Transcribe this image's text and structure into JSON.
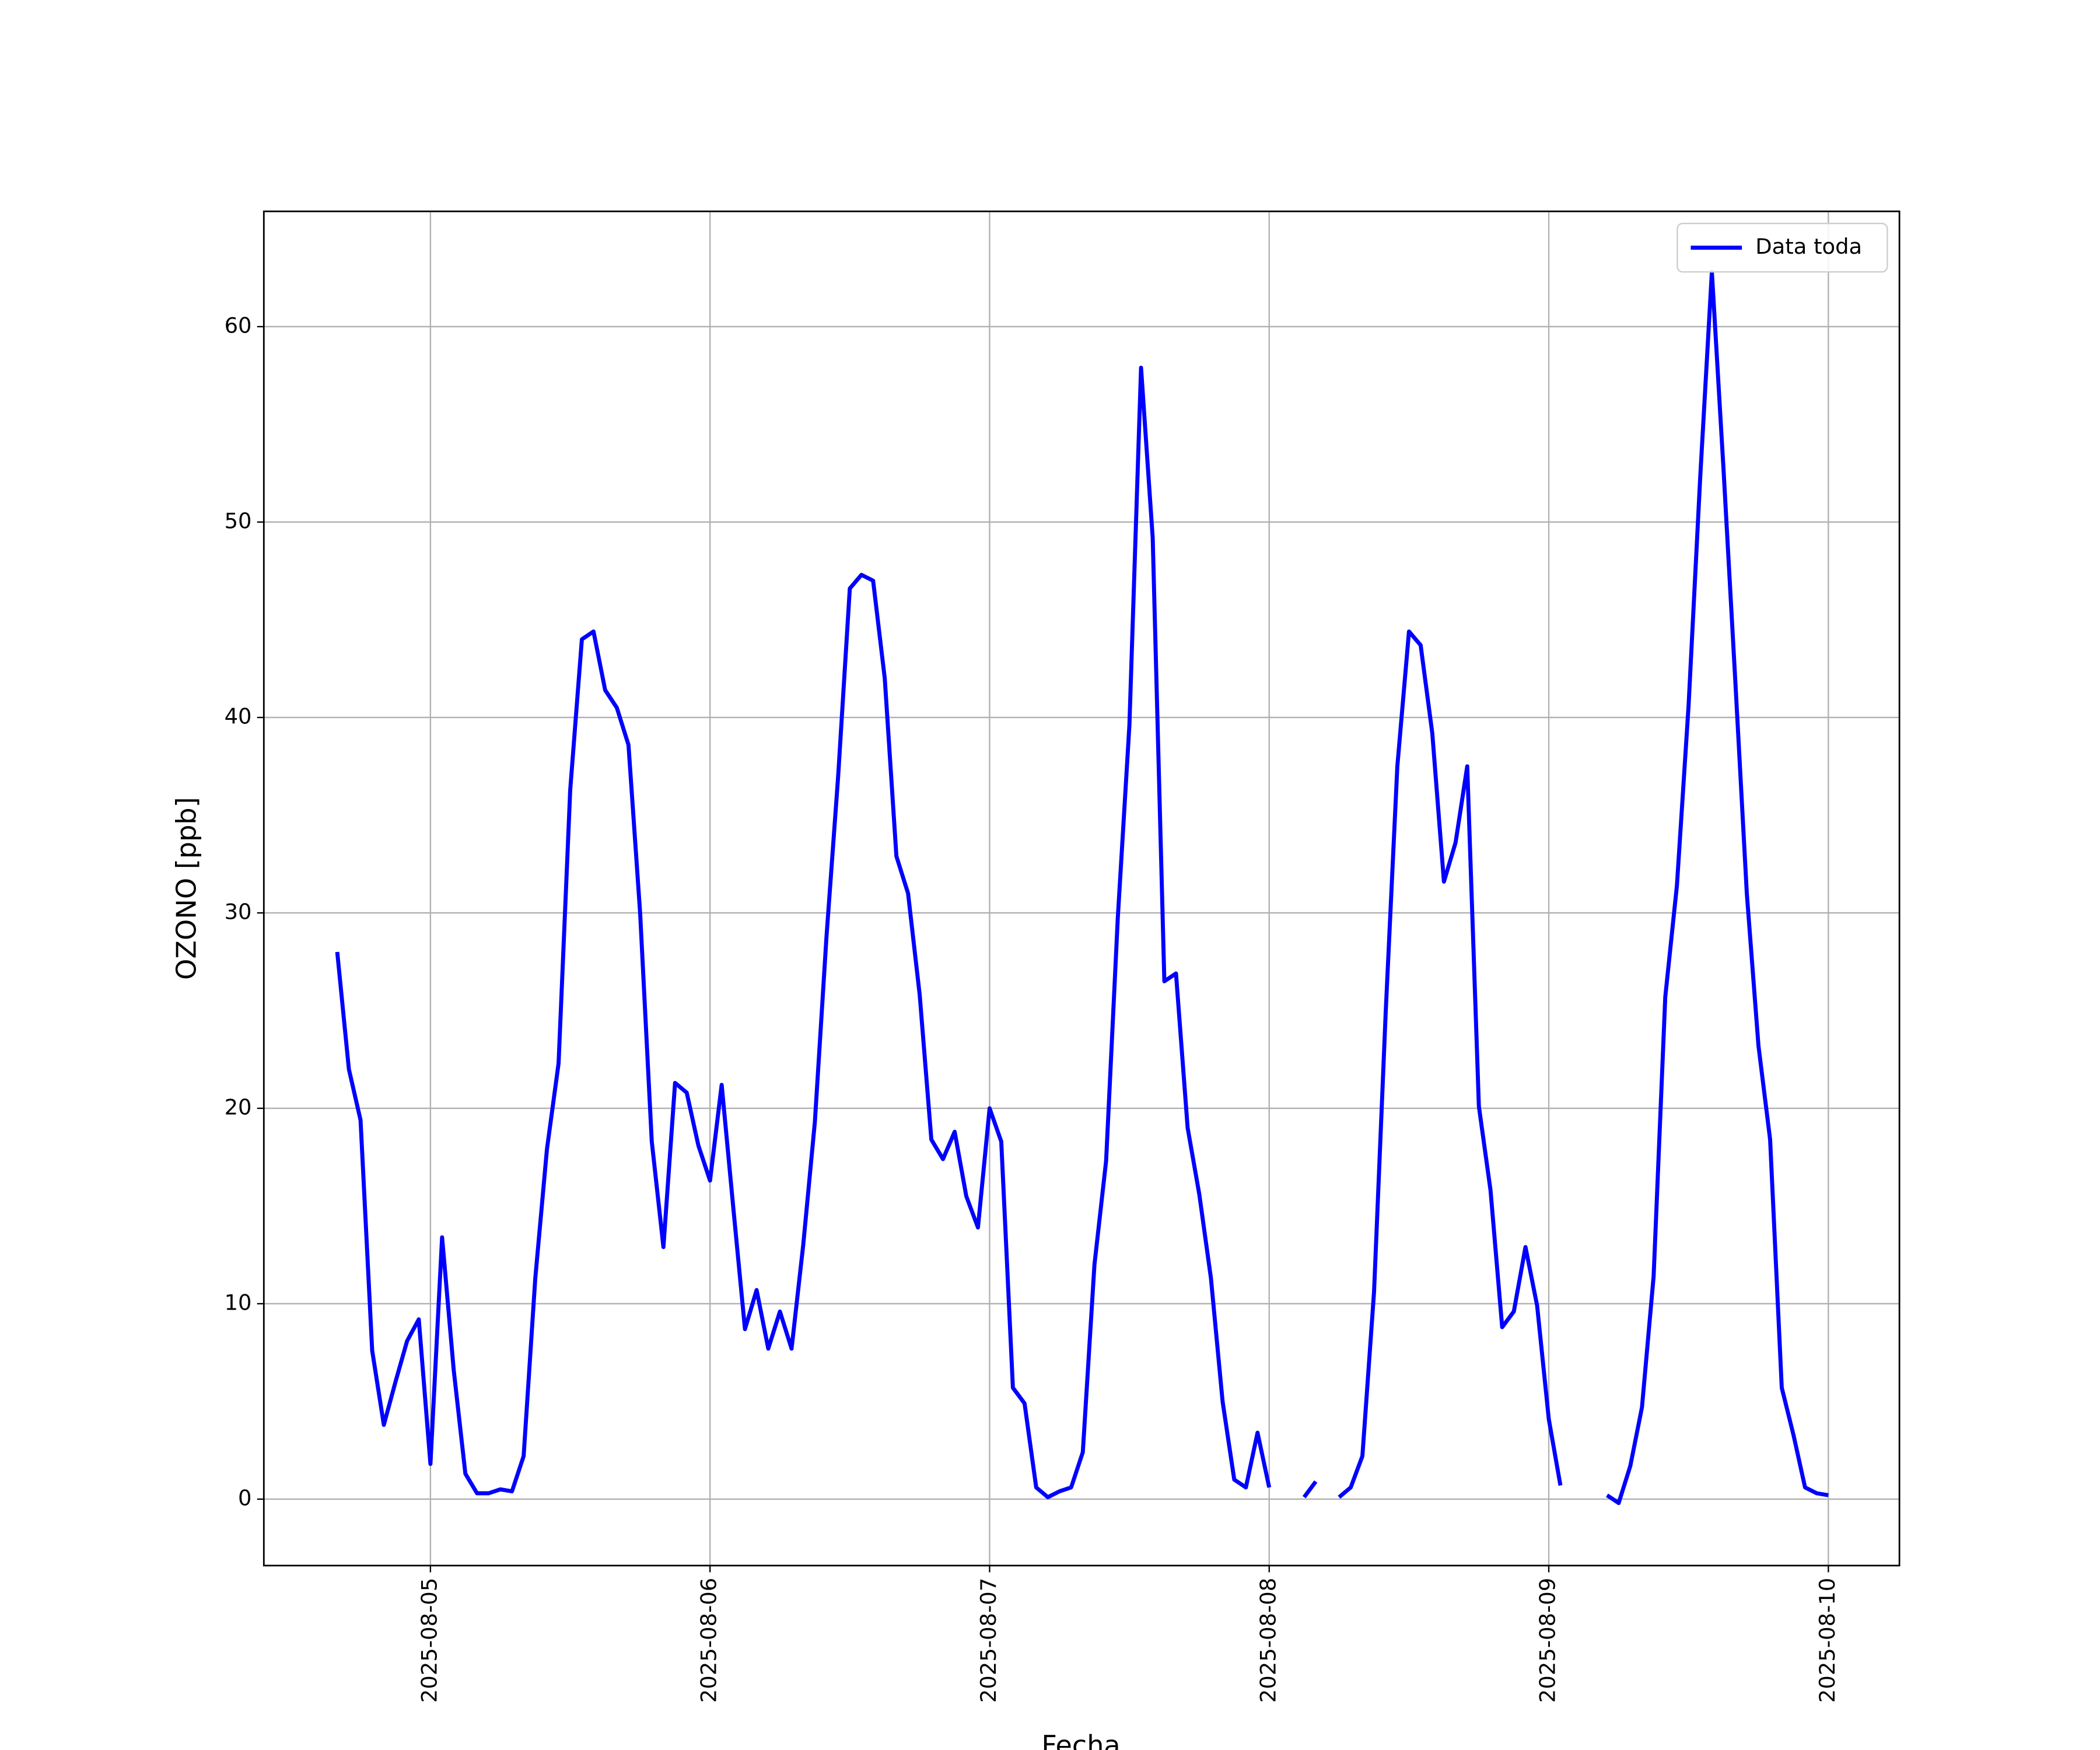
{
  "chart_data": {
    "type": "line",
    "x_label": "Fecha",
    "y_label": "OZONO [ppb]",
    "x": [
      -8,
      -7,
      -6,
      -5,
      -4,
      -3,
      -2,
      -1,
      0,
      1,
      2,
      3,
      4,
      5,
      6,
      7,
      8,
      9,
      10,
      11,
      12,
      13,
      14,
      15,
      16,
      17,
      18,
      19,
      20,
      21,
      22,
      23,
      24,
      25,
      26,
      27,
      28,
      29,
      30,
      31,
      32,
      33,
      34,
      35,
      36,
      37,
      38,
      39,
      40,
      41,
      42,
      43,
      44,
      45,
      46,
      47,
      48,
      49,
      50,
      51,
      52,
      53,
      54,
      55,
      56,
      57,
      58,
      59,
      60,
      61,
      62,
      63,
      64,
      65,
      66,
      67,
      68,
      69,
      70,
      71,
      72,
      73,
      74,
      75,
      76,
      77,
      78,
      79,
      80,
      81,
      82,
      83,
      84,
      85,
      86,
      87,
      88,
      89,
      90,
      91,
      92,
      93,
      94,
      95,
      96,
      97,
      98,
      99,
      100,
      101,
      102,
      103,
      104,
      105,
      106,
      107,
      108,
      109,
      110,
      111,
      112,
      113,
      114,
      115,
      116,
      117,
      118,
      119,
      120
    ],
    "series": [
      {
        "name": "Data toda",
        "color": "#0000ff",
        "values": [
          28,
          22,
          19.4,
          7.6,
          3.8,
          6,
          8.1,
          9.2,
          1.8,
          13.4,
          6.6,
          1.3,
          0.3,
          0.3,
          0.5,
          0.4,
          2.2,
          11.3,
          17.9,
          22.3,
          36.3,
          44,
          44.4,
          41.4,
          40.5,
          38.6,
          30,
          18.3,
          12.9,
          21.3,
          20.8,
          18.1,
          16.3,
          21.2,
          14.9,
          8.7,
          10.7,
          7.7,
          9.6,
          7.7,
          13,
          19.3,
          28.8,
          37,
          46.6,
          47.3,
          47,
          42,
          32.9,
          31,
          25.8,
          18.4,
          17.4,
          18.8,
          15.5,
          13.9,
          20,
          18.3,
          5.7,
          4.9,
          0.6,
          0.1,
          0.4,
          0.6,
          2.4,
          12,
          17.3,
          29.7,
          39.6,
          57.9,
          49.2,
          26.5,
          26.9,
          19,
          15.6,
          11.3,
          5,
          1,
          0.6,
          3.4,
          0.6,
          null,
          null,
          0.1,
          0.9,
          null,
          0.1,
          0.6,
          2.2,
          10.6,
          24.9,
          37.5,
          44.4,
          43.7,
          39.2,
          31.6,
          33.6,
          37.5,
          20.1,
          15.8,
          8.8,
          9.6,
          12.9,
          9.9,
          4.1,
          0.7,
          null,
          null,
          null,
          0.2,
          -0.2,
          1.7,
          4.7,
          11.4,
          25.7,
          31.4,
          40.6,
          52.3,
          62.8,
          52.7,
          42,
          31,
          23.2,
          18.4,
          5.7,
          3.3,
          0.6,
          0.3,
          0.2
        ]
      }
    ],
    "xlim": [
      -14.3,
      126.1
    ],
    "xticks": [
      {
        "value": 0,
        "label": "2025-08-05"
      },
      {
        "value": 24,
        "label": "2025-08-06"
      },
      {
        "value": 48,
        "label": "2025-08-07"
      },
      {
        "value": 72,
        "label": "2025-08-08"
      },
      {
        "value": 96,
        "label": "2025-08-09"
      },
      {
        "value": 120,
        "label": "2025-08-10"
      }
    ],
    "ylim": [
      -3.4,
      65.9
    ],
    "yticks": [
      0,
      10,
      20,
      30,
      40,
      50,
      60
    ],
    "grid": true,
    "legend": "upper right"
  }
}
